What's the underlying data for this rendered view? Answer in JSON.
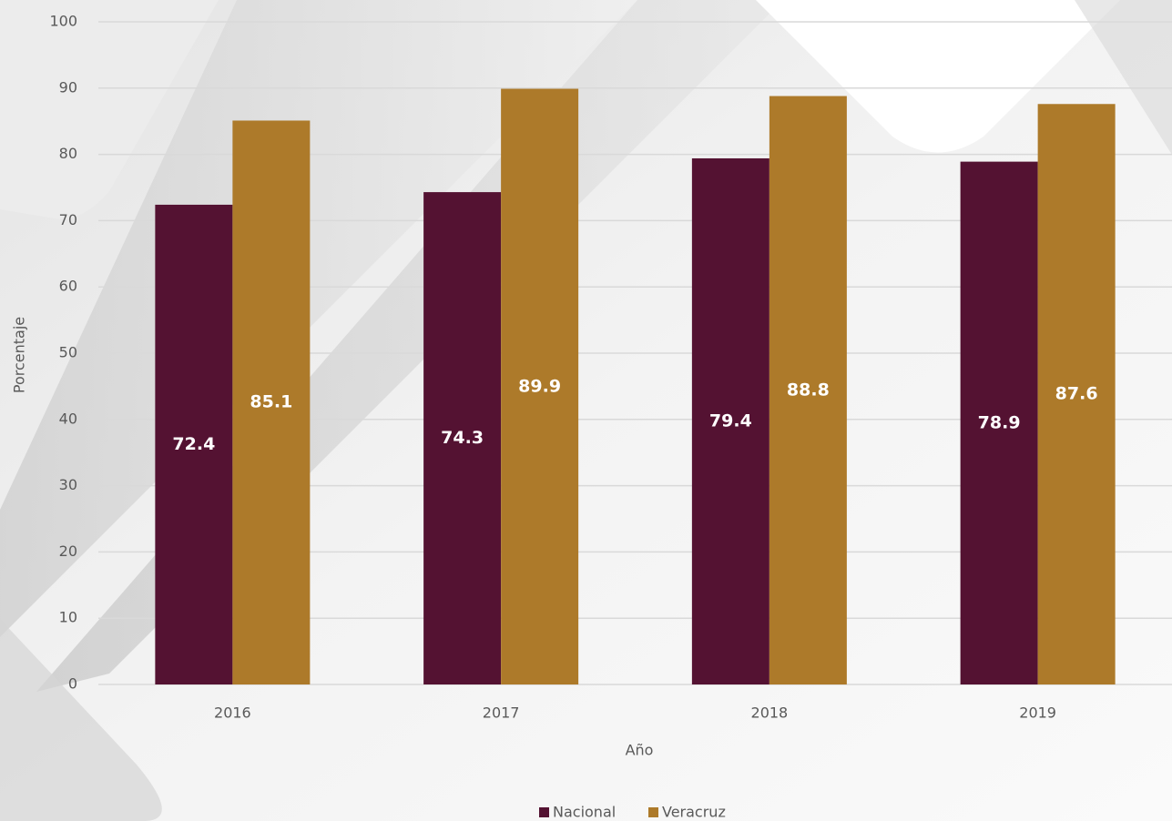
{
  "chart_data": {
    "type": "bar",
    "x_label": "Año",
    "y_label": "Porcentaje",
    "categories": [
      "2016",
      "2017",
      "2018",
      "2019"
    ],
    "series": [
      {
        "name": "Nacional",
        "color": "#541232",
        "values": [
          72.4,
          74.3,
          79.4,
          78.9
        ]
      },
      {
        "name": "Veracruz",
        "color": "#ad7a2a",
        "values": [
          85.1,
          89.9,
          88.8,
          87.6
        ]
      }
    ],
    "ylim": [
      0,
      100
    ],
    "yticks": [
      0,
      10,
      20,
      30,
      40,
      50,
      60,
      70,
      80,
      90,
      100
    ],
    "grid": true,
    "legend": "bottom",
    "data_labels": true
  }
}
